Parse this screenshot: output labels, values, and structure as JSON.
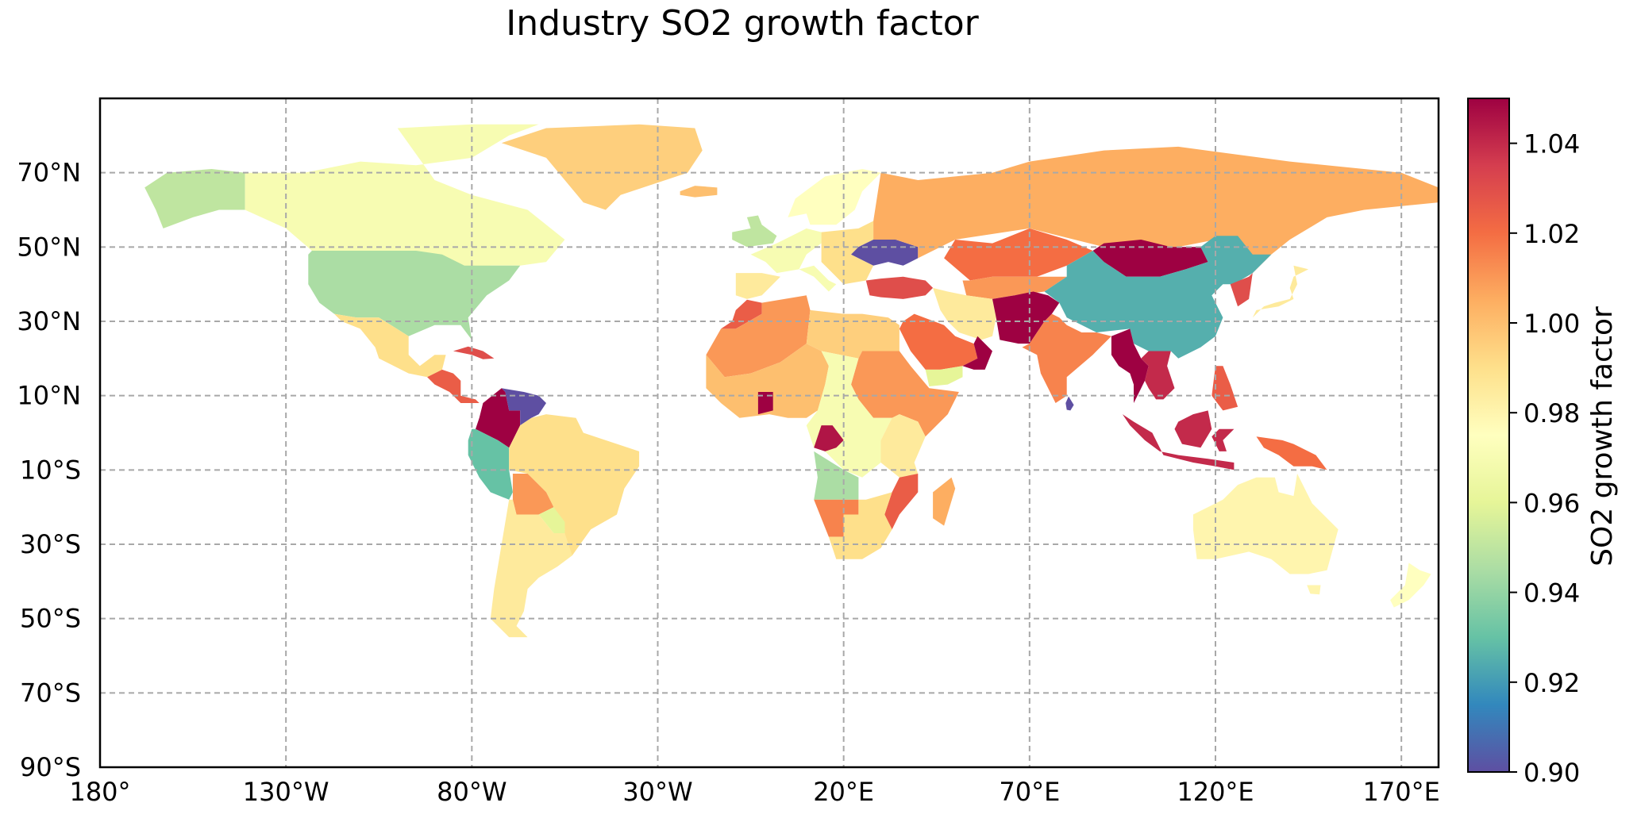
{
  "title": "Industry SO2 growth factor",
  "map": {
    "projection": "PlateCarree",
    "lon_range": [
      -180,
      180
    ],
    "lat_range": [
      -90,
      90
    ],
    "gridlines": true,
    "lon_ticks": [
      {
        "lon": -180,
        "label": "180°"
      },
      {
        "lon": -130,
        "label": "130°W"
      },
      {
        "lon": -80,
        "label": "80°W"
      },
      {
        "lon": -30,
        "label": "30°W"
      },
      {
        "lon": 20,
        "label": "20°E"
      },
      {
        "lon": 70,
        "label": "70°E"
      },
      {
        "lon": 120,
        "label": "120°E"
      },
      {
        "lon": 170,
        "label": "170°E"
      }
    ],
    "lat_ticks": [
      {
        "lat": 70,
        "label": "70°N"
      },
      {
        "lat": 50,
        "label": "50°N"
      },
      {
        "lat": 30,
        "label": "30°N"
      },
      {
        "lat": 10,
        "label": "10°N"
      },
      {
        "lat": -10,
        "label": "10°S"
      },
      {
        "lat": -30,
        "label": "30°S"
      },
      {
        "lat": -50,
        "label": "50°S"
      },
      {
        "lat": -70,
        "label": "70°S"
      },
      {
        "lat": -90,
        "label": "90°S"
      }
    ]
  },
  "colorbar": {
    "label": "SO2 growth factor",
    "colormap": "Spectral_r",
    "range": [
      0.9,
      1.05
    ],
    "ticks": [
      {
        "value": 1.04,
        "label": "1.04"
      },
      {
        "value": 1.02,
        "label": "1.02"
      },
      {
        "value": 1.0,
        "label": "1.00"
      },
      {
        "value": 0.98,
        "label": "0.98"
      },
      {
        "value": 0.96,
        "label": "0.96"
      },
      {
        "value": 0.94,
        "label": "0.94"
      },
      {
        "value": 0.92,
        "label": "0.92"
      },
      {
        "value": 0.9,
        "label": "0.90"
      }
    ],
    "colors": [
      "#5e4fa2",
      "#3288bd",
      "#66c2a5",
      "#abdda4",
      "#e6f598",
      "#ffffbf",
      "#fee08b",
      "#fdae61",
      "#f46d43",
      "#d53e4f",
      "#9e0142"
    ]
  },
  "regions": [
    {
      "name": "Alaska",
      "value": 0.95
    },
    {
      "name": "Canada",
      "value": 0.97
    },
    {
      "name": "Greenland",
      "value": 0.995
    },
    {
      "name": "USA",
      "value": 0.945
    },
    {
      "name": "Mexico",
      "value": 0.99
    },
    {
      "name": "Central America",
      "value": 1.025
    },
    {
      "name": "Cuba",
      "value": 1.03
    },
    {
      "name": "Colombia",
      "value": 1.05
    },
    {
      "name": "Venezuela",
      "value": 0.9
    },
    {
      "name": "Ecuador/Peru",
      "value": 0.93
    },
    {
      "name": "Brazil",
      "value": 0.99
    },
    {
      "name": "Bolivia",
      "value": 1.01
    },
    {
      "name": "Paraguay",
      "value": 0.96
    },
    {
      "name": "Argentina/Chile",
      "value": 0.985
    },
    {
      "name": "Iceland",
      "value": 1.0
    },
    {
      "name": "UK",
      "value": 0.95
    },
    {
      "name": "Scandinavia",
      "value": 0.975
    },
    {
      "name": "Western Europe",
      "value": 0.97
    },
    {
      "name": "Iberia",
      "value": 0.985
    },
    {
      "name": "Eastern Europe",
      "value": 0.99
    },
    {
      "name": "Ukraine",
      "value": 0.9
    },
    {
      "name": "Turkey",
      "value": 1.03
    },
    {
      "name": "Russia",
      "value": 1.005
    },
    {
      "name": "Kazakhstan",
      "value": 1.02
    },
    {
      "name": "Central Asia",
      "value": 1.01
    },
    {
      "name": "Iran",
      "value": 0.985
    },
    {
      "name": "Saudi Arabia",
      "value": 1.02
    },
    {
      "name": "Yemen",
      "value": 0.96
    },
    {
      "name": "Oman",
      "value": 1.05
    },
    {
      "name": "Mongolia",
      "value": 1.05
    },
    {
      "name": "China",
      "value": 0.925
    },
    {
      "name": "Pakistan/Afghanistan",
      "value": 1.05
    },
    {
      "name": "India",
      "value": 1.015
    },
    {
      "name": "Myanmar/Thailand",
      "value": 1.05
    },
    {
      "name": "Indochina",
      "value": 1.04
    },
    {
      "name": "Korea",
      "value": 1.03
    },
    {
      "name": "Japan",
      "value": 0.985
    },
    {
      "name": "Philippines",
      "value": 1.025
    },
    {
      "name": "Indonesia",
      "value": 1.04
    },
    {
      "name": "Papua New Guinea",
      "value": 1.02
    },
    {
      "name": "Sri Lanka",
      "value": 0.9
    },
    {
      "name": "Morocco",
      "value": 1.025
    },
    {
      "name": "North Africa",
      "value": 1.01
    },
    {
      "name": "Libya/Egypt",
      "value": 0.995
    },
    {
      "name": "West Africa",
      "value": 1.0
    },
    {
      "name": "Ghana",
      "value": 1.05
    },
    {
      "name": "Sudan/Horn",
      "value": 1.01
    },
    {
      "name": "Central Africa",
      "value": 0.97
    },
    {
      "name": "Congo",
      "value": 1.045
    },
    {
      "name": "Angola",
      "value": 0.945
    },
    {
      "name": "East Africa",
      "value": 0.985
    },
    {
      "name": "Mozambique",
      "value": 1.025
    },
    {
      "name": "Namibia",
      "value": 1.015
    },
    {
      "name": "South Africa",
      "value": 0.99
    },
    {
      "name": "Madagascar",
      "value": 1.005
    },
    {
      "name": "Australia",
      "value": 0.98
    },
    {
      "name": "New Zealand",
      "value": 0.975
    }
  ]
}
